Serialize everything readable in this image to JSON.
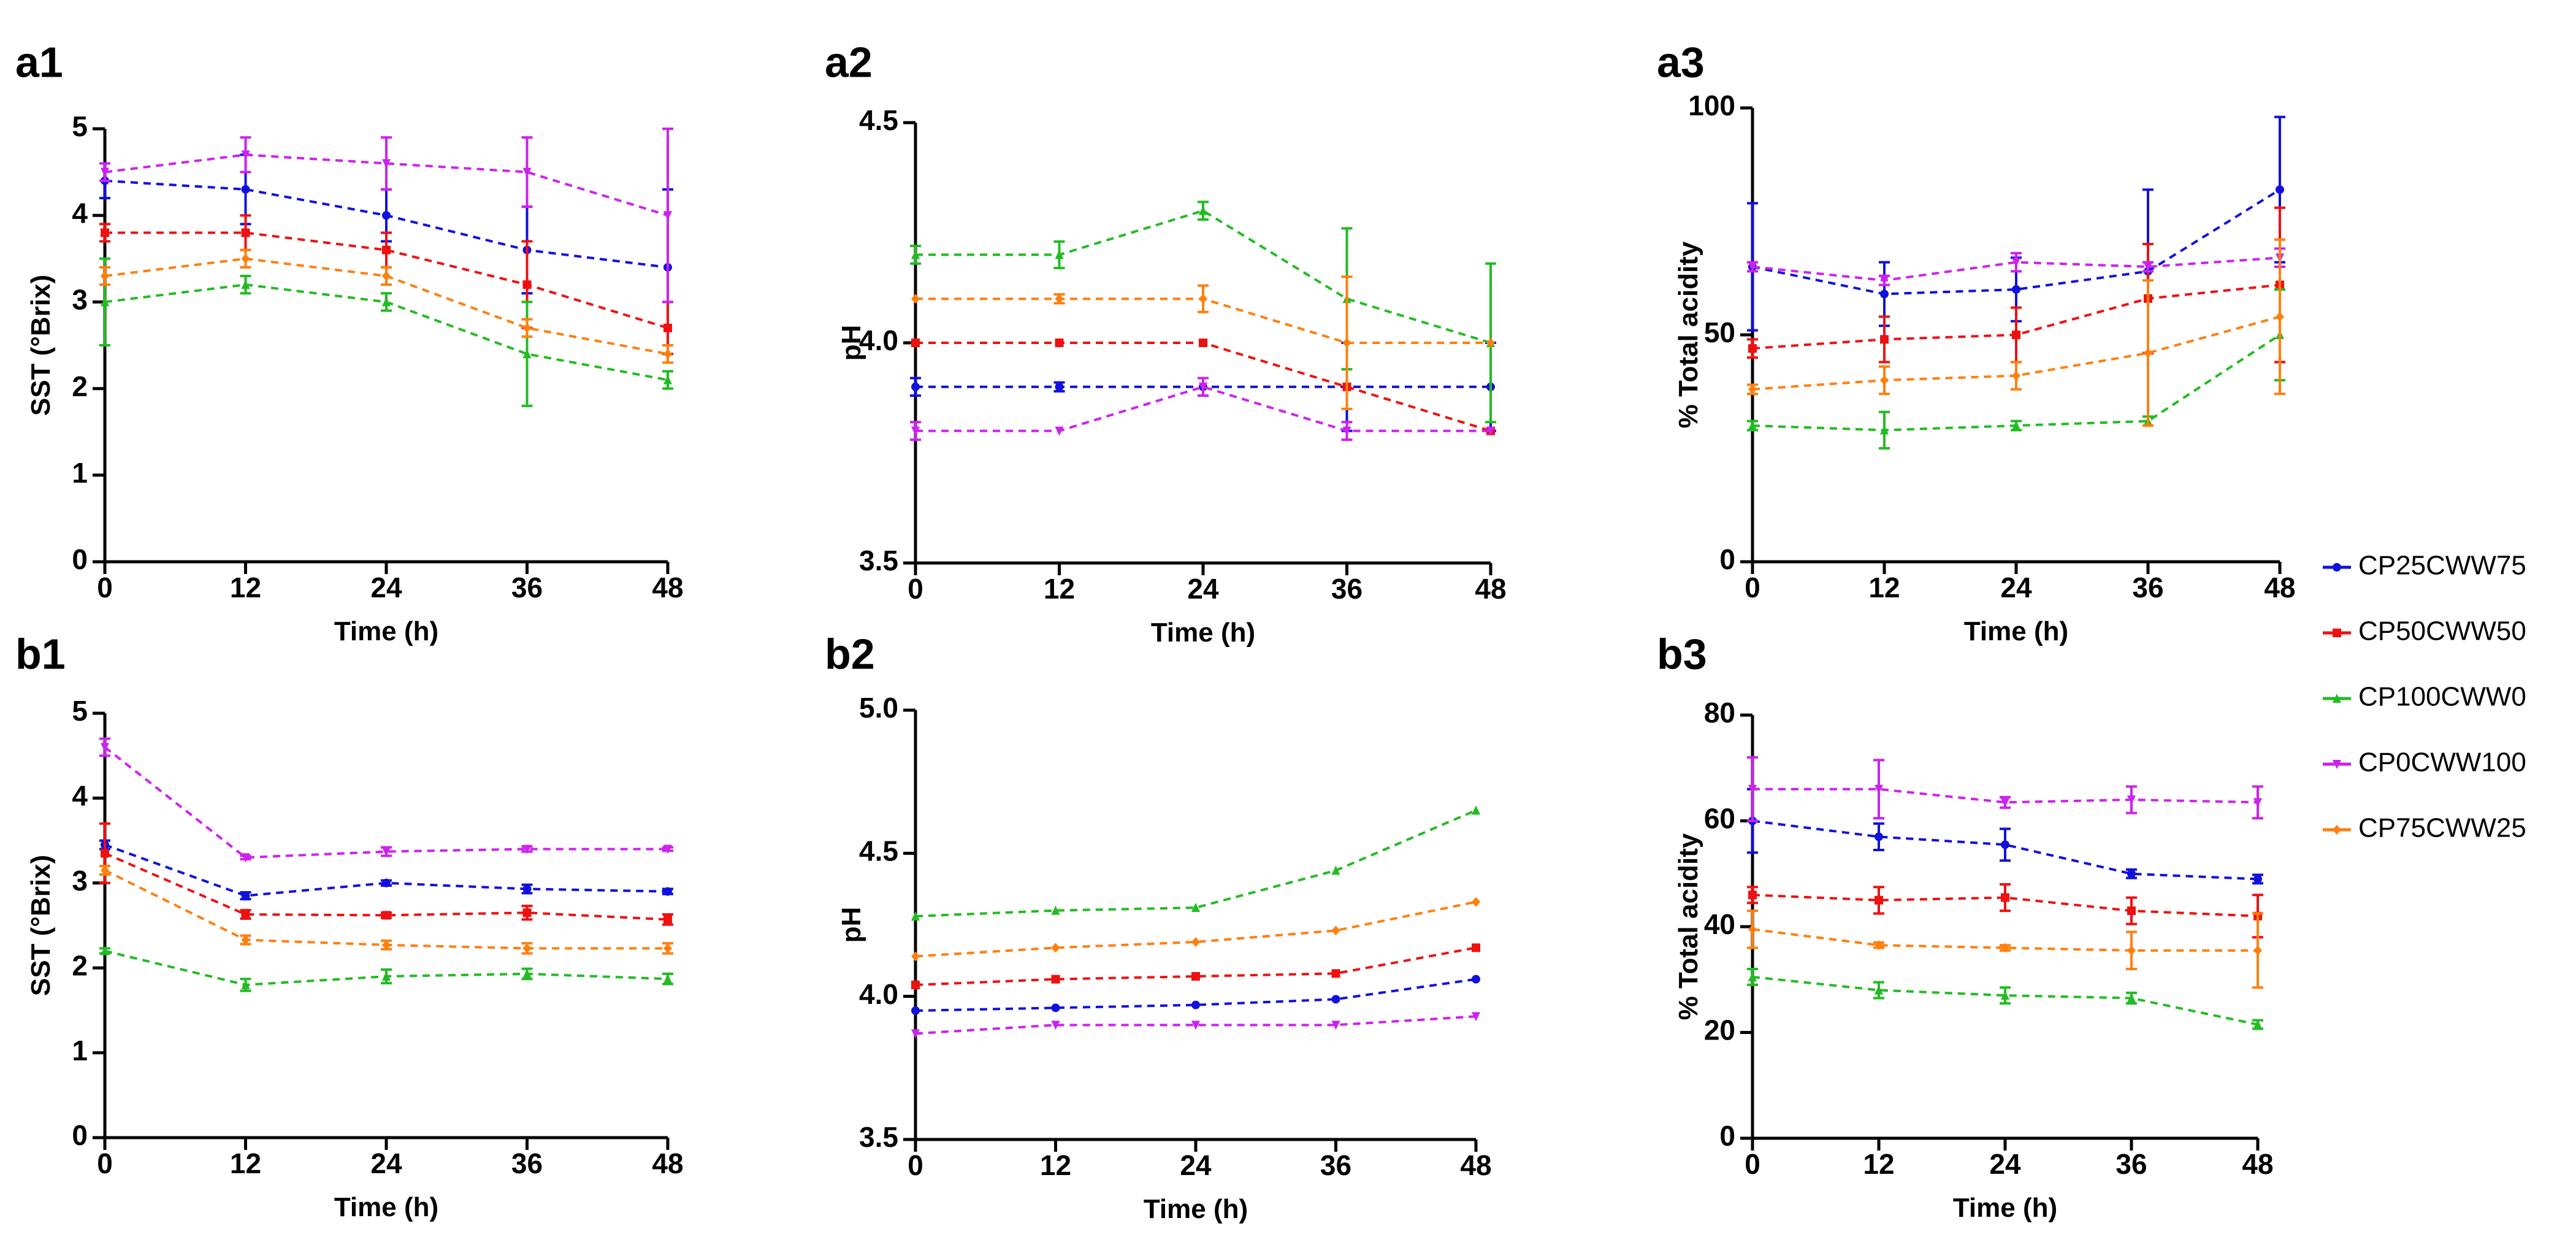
{
  "figure": {
    "legend": [
      {
        "name": "CP25CWW75",
        "color": "#1111dd",
        "marker": "circle"
      },
      {
        "name": "CP50CWW50",
        "color": "#ee1111",
        "marker": "square"
      },
      {
        "name": "CP100CWW0",
        "color": "#22bb22",
        "marker": "triangle"
      },
      {
        "name": "CP0CWW100",
        "color": "#cc22ee",
        "marker": "triangle-down"
      },
      {
        "name": "CP75CWW25",
        "color": "#ff7f0e",
        "marker": "diamond"
      }
    ]
  },
  "chart_data": [
    {
      "id": "a1",
      "type": "line",
      "panel_label": "a1",
      "xlabel": "Time (h)",
      "ylabel": "SST (°Brix)",
      "x": [
        0,
        12,
        24,
        36,
        48
      ],
      "xticks": [
        "0",
        "12",
        "24",
        "36",
        "48"
      ],
      "ylim": [
        0,
        5
      ],
      "yticks": [
        "0",
        "1",
        "2",
        "3",
        "4",
        "5"
      ],
      "series": [
        {
          "name": "CP25CWW75",
          "values": [
            4.4,
            4.3,
            4.0,
            3.6,
            3.4
          ],
          "errors": [
            0.2,
            0.4,
            0.3,
            0.5,
            0.9
          ]
        },
        {
          "name": "CP50CWW50",
          "values": [
            3.8,
            3.8,
            3.6,
            3.2,
            2.7
          ],
          "errors": [
            0.1,
            0.2,
            0.2,
            0.5,
            0.3
          ]
        },
        {
          "name": "CP100CWW0",
          "values": [
            3.0,
            3.2,
            3.0,
            2.4,
            2.1
          ],
          "errors": [
            0.5,
            0.1,
            0.1,
            0.6,
            0.1
          ]
        },
        {
          "name": "CP0CWW100",
          "values": [
            4.5,
            4.7,
            4.6,
            4.5,
            4.0
          ],
          "errors": [
            0.1,
            0.2,
            0.3,
            0.4,
            1.0
          ]
        },
        {
          "name": "CP75CWW25",
          "values": [
            3.3,
            3.5,
            3.3,
            2.7,
            2.4
          ],
          "errors": [
            0.1,
            0.1,
            0.1,
            0.1,
            0.1
          ]
        }
      ]
    },
    {
      "id": "a2",
      "type": "line",
      "panel_label": "a2",
      "xlabel": "Time (h)",
      "ylabel": "pH",
      "x": [
        0,
        12,
        24,
        36,
        48
      ],
      "xticks": [
        "0",
        "12",
        "24",
        "36",
        "48"
      ],
      "ylim": [
        3.5,
        4.5
      ],
      "yticks": [
        "3.5",
        "4.0",
        "4.5"
      ],
      "series": [
        {
          "name": "CP25CWW75",
          "values": [
            3.9,
            3.9,
            3.9,
            3.9,
            3.9
          ],
          "errors": [
            0.02,
            0.01,
            0.02,
            0.1,
            0.1
          ]
        },
        {
          "name": "CP50CWW50",
          "values": [
            4.0,
            4.0,
            4.0,
            3.9,
            3.8
          ],
          "errors": [
            0.0,
            0.0,
            0.0,
            0.0,
            0.0
          ]
        },
        {
          "name": "CP100CWW0",
          "values": [
            4.2,
            4.2,
            4.3,
            4.1,
            4.0
          ],
          "errors": [
            0.02,
            0.03,
            0.02,
            0.16,
            0.18
          ]
        },
        {
          "name": "CP0CWW100",
          "values": [
            3.8,
            3.8,
            3.9,
            3.8,
            3.8
          ],
          "errors": [
            0.02,
            0.0,
            0.02,
            0.02,
            0.0
          ]
        },
        {
          "name": "CP75CWW25",
          "values": [
            4.1,
            4.1,
            4.1,
            4.0,
            4.0
          ],
          "errors": [
            0.0,
            0.01,
            0.03,
            0.15,
            0.0
          ]
        }
      ]
    },
    {
      "id": "a3",
      "type": "line",
      "panel_label": "a3",
      "xlabel": "Time (h)",
      "ylabel": "% Total acidity",
      "x": [
        0,
        12,
        24,
        36,
        48
      ],
      "xticks": [
        "0",
        "12",
        "24",
        "36",
        "48"
      ],
      "ylim": [
        0,
        100
      ],
      "yticks": [
        "0",
        "50",
        "100"
      ],
      "series": [
        {
          "name": "CP25CWW75",
          "values": [
            65,
            59,
            60,
            64,
            82
          ],
          "errors": [
            14,
            7,
            7,
            18,
            16
          ]
        },
        {
          "name": "CP50CWW50",
          "values": [
            47,
            49,
            50,
            58,
            61
          ],
          "errors": [
            2,
            5,
            6,
            12,
            17
          ]
        },
        {
          "name": "CP100CWW0",
          "values": [
            30,
            29,
            30,
            31,
            50
          ],
          "errors": [
            1,
            4,
            1,
            1,
            10
          ]
        },
        {
          "name": "CP0CWW100",
          "values": [
            65,
            62,
            66,
            65,
            67
          ],
          "errors": [
            1,
            1,
            2,
            1,
            2
          ]
        },
        {
          "name": "CP75CWW25",
          "values": [
            38,
            40,
            41,
            46,
            54
          ],
          "errors": [
            1,
            3,
            3,
            16,
            17
          ]
        }
      ]
    },
    {
      "id": "b1",
      "type": "line",
      "panel_label": "b1",
      "xlabel": "Time (h)",
      "ylabel": "SST (°Brix)",
      "x": [
        0,
        12,
        24,
        36,
        48
      ],
      "xticks": [
        "0",
        "12",
        "24",
        "36",
        "48"
      ],
      "ylim": [
        0,
        5
      ],
      "yticks": [
        "0",
        "1",
        "2",
        "3",
        "4",
        "5"
      ],
      "series": [
        {
          "name": "CP25CWW75",
          "values": [
            3.45,
            2.85,
            3.0,
            2.93,
            2.9
          ],
          "errors": [
            0.05,
            0.04,
            0.03,
            0.05,
            0.03
          ]
        },
        {
          "name": "CP50CWW50",
          "values": [
            3.35,
            2.63,
            2.62,
            2.65,
            2.57
          ],
          "errors": [
            0.35,
            0.05,
            0.03,
            0.08,
            0.06
          ]
        },
        {
          "name": "CP100CWW0",
          "values": [
            2.2,
            1.8,
            1.9,
            1.93,
            1.87
          ],
          "errors": [
            0.03,
            0.07,
            0.08,
            0.06,
            0.06
          ]
        },
        {
          "name": "CP0CWW100",
          "values": [
            4.6,
            3.3,
            3.37,
            3.4,
            3.4
          ],
          "errors": [
            0.1,
            0.02,
            0.05,
            0.03,
            0.02
          ]
        },
        {
          "name": "CP75CWW25",
          "values": [
            3.15,
            2.33,
            2.27,
            2.23,
            2.23
          ],
          "errors": [
            0.05,
            0.05,
            0.05,
            0.06,
            0.06
          ]
        }
      ]
    },
    {
      "id": "b2",
      "type": "line",
      "panel_label": "b2",
      "xlabel": "Time (h)",
      "ylabel": "pH",
      "x": [
        0,
        12,
        24,
        36,
        48
      ],
      "xticks": [
        "0",
        "12",
        "24",
        "36",
        "48"
      ],
      "ylim": [
        3.5,
        5.0
      ],
      "yticks": [
        "3.5",
        "4.0",
        "4.5",
        "5.0"
      ],
      "series": [
        {
          "name": "CP25CWW75",
          "values": [
            3.95,
            3.96,
            3.97,
            3.99,
            4.06
          ],
          "errors": [
            0,
            0,
            0,
            0,
            0
          ]
        },
        {
          "name": "CP50CWW50",
          "values": [
            4.04,
            4.06,
            4.07,
            4.08,
            4.17
          ],
          "errors": [
            0,
            0,
            0,
            0,
            0
          ]
        },
        {
          "name": "CP100CWW0",
          "values": [
            4.28,
            4.3,
            4.31,
            4.44,
            4.65
          ],
          "errors": [
            0,
            0,
            0,
            0,
            0
          ]
        },
        {
          "name": "CP0CWW100",
          "values": [
            3.87,
            3.9,
            3.9,
            3.9,
            3.93
          ],
          "errors": [
            0,
            0,
            0,
            0,
            0
          ]
        },
        {
          "name": "CP75CWW25",
          "values": [
            4.14,
            4.17,
            4.19,
            4.23,
            4.33
          ],
          "errors": [
            0,
            0,
            0,
            0,
            0
          ]
        }
      ]
    },
    {
      "id": "b3",
      "type": "line",
      "panel_label": "b3",
      "xlabel": "Time (h)",
      "ylabel": "% Total acidity",
      "x": [
        0,
        12,
        24,
        36,
        48
      ],
      "xticks": [
        "0",
        "12",
        "24",
        "36",
        "48"
      ],
      "ylim": [
        0,
        80
      ],
      "yticks": [
        "0",
        "20",
        "40",
        "60",
        "80"
      ],
      "series": [
        {
          "name": "CP25CWW75",
          "values": [
            60,
            57,
            55.5,
            50,
            49
          ],
          "errors": [
            6,
            2.5,
            3,
            0.8,
            0.8
          ]
        },
        {
          "name": "CP50CWW50",
          "values": [
            46,
            45,
            45.5,
            43,
            42
          ],
          "errors": [
            1.5,
            2.5,
            2.5,
            2.5,
            4
          ]
        },
        {
          "name": "CP100CWW0",
          "values": [
            30.5,
            28,
            27,
            26.5,
            21.5
          ],
          "errors": [
            1.5,
            1.5,
            1.5,
            1,
            0.8
          ]
        },
        {
          "name": "CP0CWW100",
          "values": [
            66,
            66,
            63.5,
            64,
            63.5
          ],
          "errors": [
            6,
            5.5,
            1,
            2.5,
            3
          ]
        },
        {
          "name": "CP75CWW25",
          "values": [
            39.5,
            36.5,
            36,
            35.5,
            35.5
          ],
          "errors": [
            3.5,
            0.5,
            0.5,
            3.5,
            7
          ]
        }
      ]
    }
  ]
}
